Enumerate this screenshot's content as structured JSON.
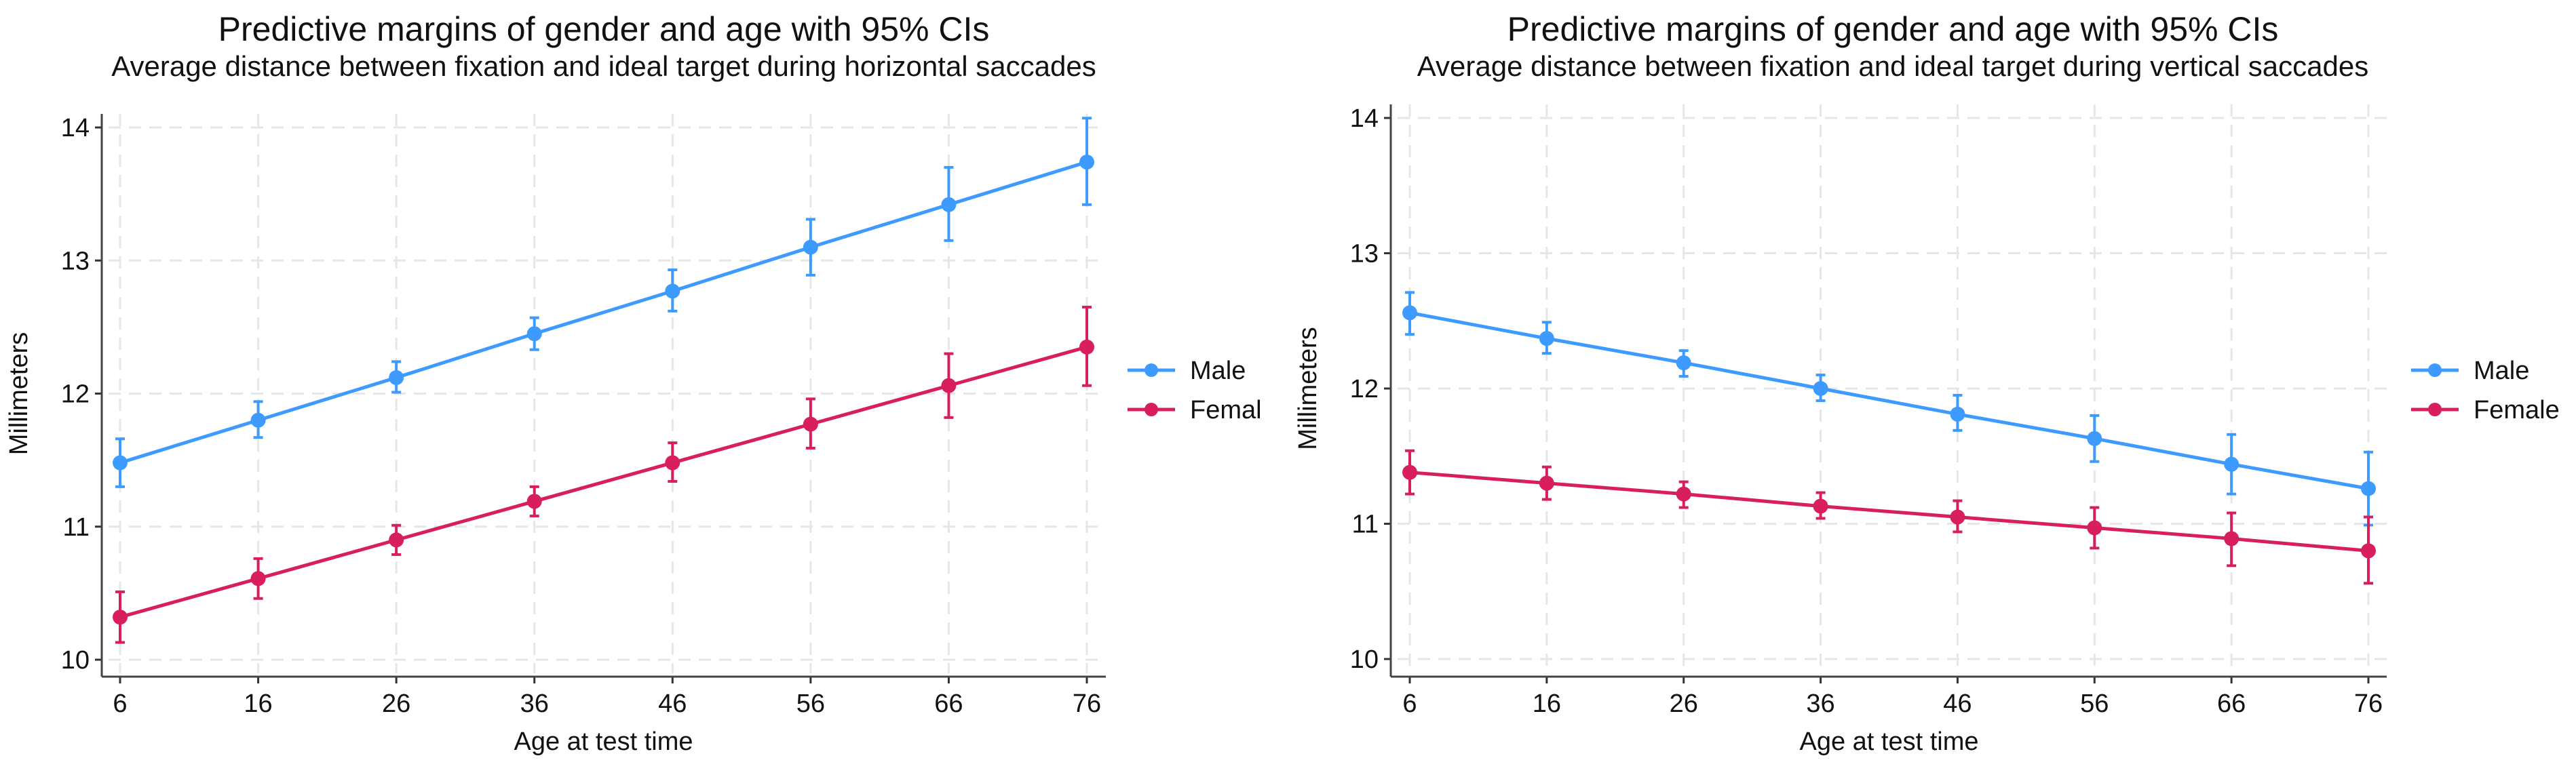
{
  "chart_data": [
    {
      "type": "line",
      "title": "Predictive margins of gender and age with 95% CIs",
      "subtitle": "Average distance between fixation and ideal target during horizontal saccades",
      "xlabel": "Age at test time",
      "ylabel": "Millimeters",
      "x": [
        6,
        16,
        26,
        36,
        46,
        56,
        66,
        76
      ],
      "xticks": [
        "6",
        "16",
        "26",
        "36",
        "46",
        "56",
        "66",
        "76"
      ],
      "yticks": [
        "10",
        "11",
        "12",
        "13",
        "14"
      ],
      "ylim": [
        9.9,
        14.15
      ],
      "grid": true,
      "legend_position": "right",
      "series": [
        {
          "name": "Male",
          "color": "#3d9bff",
          "values": [
            11.48,
            11.8,
            12.12,
            12.45,
            12.77,
            13.1,
            13.42,
            13.74
          ],
          "ci_low": [
            11.3,
            11.67,
            12.01,
            12.33,
            12.62,
            12.89,
            13.15,
            13.42
          ],
          "ci_high": [
            11.66,
            11.94,
            12.24,
            12.57,
            12.93,
            13.31,
            13.7,
            14.07
          ]
        },
        {
          "name": "Femal",
          "color": "#d81e5b",
          "values": [
            10.32,
            10.61,
            10.9,
            11.19,
            11.48,
            11.77,
            12.06,
            12.35
          ],
          "ci_low": [
            10.13,
            10.46,
            10.79,
            11.08,
            11.34,
            11.59,
            11.82,
            12.06
          ],
          "ci_high": [
            10.51,
            10.76,
            11.01,
            11.3,
            11.63,
            11.96,
            12.3,
            12.65
          ]
        }
      ]
    },
    {
      "type": "line",
      "title": "Predictive margins of gender and age with 95% CIs",
      "subtitle": "Average distance between fixation and ideal target during vertical saccades",
      "xlabel": "Age at test time",
      "ylabel": "Millimeters",
      "x": [
        6,
        16,
        26,
        36,
        46,
        56,
        66,
        76
      ],
      "xticks": [
        "6",
        "16",
        "26",
        "36",
        "46",
        "56",
        "66",
        "76"
      ],
      "yticks": [
        "10",
        "11",
        "12",
        "13",
        "14"
      ],
      "ylim": [
        9.87,
        14.13
      ],
      "grid": true,
      "legend_position": "right",
      "series": [
        {
          "name": "Male",
          "color": "#3d9bff",
          "values": [
            12.56,
            12.37,
            12.19,
            12.0,
            11.81,
            11.63,
            11.44,
            11.26
          ],
          "ci_low": [
            12.4,
            12.26,
            12.09,
            11.91,
            11.69,
            11.46,
            11.22,
            10.99
          ],
          "ci_high": [
            12.71,
            12.49,
            12.28,
            12.1,
            11.95,
            11.8,
            11.66,
            11.53
          ]
        },
        {
          "name": "Female",
          "color": "#d81e5b",
          "values": [
            11.38,
            11.3,
            11.22,
            11.13,
            11.05,
            10.97,
            10.89,
            10.8
          ],
          "ci_low": [
            11.22,
            11.18,
            11.12,
            11.04,
            10.94,
            10.82,
            10.69,
            10.56
          ],
          "ci_high": [
            11.54,
            11.42,
            11.31,
            11.23,
            11.17,
            11.12,
            11.08,
            11.05
          ]
        }
      ]
    }
  ]
}
